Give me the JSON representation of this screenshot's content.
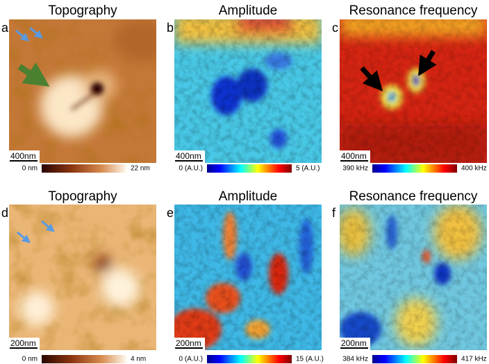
{
  "panels": [
    {
      "letter": "a",
      "title": "Topography",
      "scale_bar": "400nm",
      "colorbar_min": "0 nm",
      "colorbar_max": "22 nm"
    },
    {
      "letter": "b",
      "title": "Amplitude",
      "scale_bar": "400nm",
      "colorbar_min": "0 (A.U.)",
      "colorbar_max": "5 (A.U.)"
    },
    {
      "letter": "c",
      "title": "Resonance frequency",
      "scale_bar": "400nm",
      "colorbar_min": "390 kHz",
      "colorbar_max": "400 kHz"
    },
    {
      "letter": "d",
      "title": "Topography",
      "scale_bar": "200nm",
      "colorbar_min": "0 nm",
      "colorbar_max": "4 nm"
    },
    {
      "letter": "e",
      "title": "Amplitude",
      "scale_bar": "200nm",
      "colorbar_min": "0 (A.U.)",
      "colorbar_max": "15 (A.U.)"
    },
    {
      "letter": "f",
      "title": "Resonance frequency",
      "scale_bar": "200nm",
      "colorbar_min": "384 kHz",
      "colorbar_max": "417 kHz"
    }
  ]
}
